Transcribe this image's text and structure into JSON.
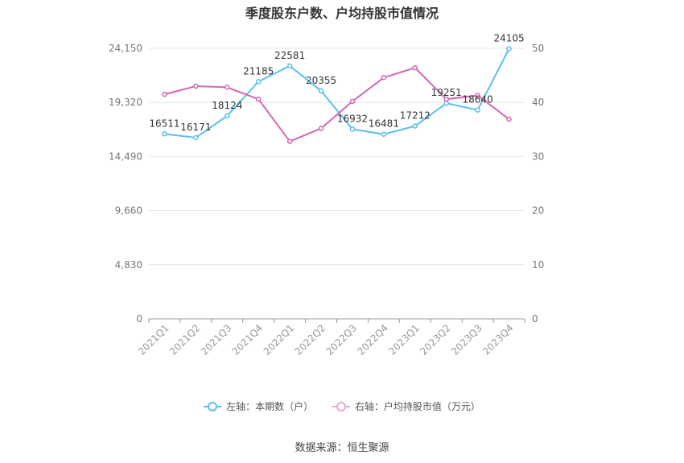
{
  "chart_data": {
    "type": "line",
    "title": "季度股东户数、户均持股市值情况",
    "categories": [
      "2021Q1",
      "2021Q2",
      "2021Q3",
      "2021Q4",
      "2022Q1",
      "2022Q2",
      "2022Q3",
      "2022Q4",
      "2023Q1",
      "2023Q2",
      "2023Q3",
      "2023Q4"
    ],
    "left_axis": {
      "min": 0,
      "max": 24150,
      "ticks": [
        "0",
        "4,830",
        "9,660",
        "14,490",
        "19,320",
        "24,150"
      ]
    },
    "right_axis": {
      "min": 0,
      "max": 50,
      "ticks": [
        "0",
        "10",
        "20",
        "30",
        "40",
        "50"
      ]
    },
    "series": [
      {
        "name": "左轴：本期数（户）",
        "axis": "left",
        "color": "#5bc0eb",
        "values": [
          16511,
          16171,
          18124,
          21185,
          22581,
          20355,
          16932,
          16481,
          17212,
          19251,
          18640,
          24105
        ],
        "labels": [
          "16511",
          "16171",
          "18124",
          "21185",
          "22581",
          "20355",
          "16932",
          "16481",
          "17212",
          "19251",
          "18640",
          "24105"
        ]
      },
      {
        "name": "右轴：户均持股市值（万元）",
        "axis": "right",
        "color": "#d467b3",
        "values": [
          41.5,
          43.0,
          42.8,
          40.6,
          32.8,
          35.2,
          40.2,
          44.6,
          46.4,
          40.6,
          41.3,
          36.9
        ]
      }
    ],
    "grid": true,
    "legend_position": "bottom"
  },
  "source": "数据来源：恒生聚源"
}
